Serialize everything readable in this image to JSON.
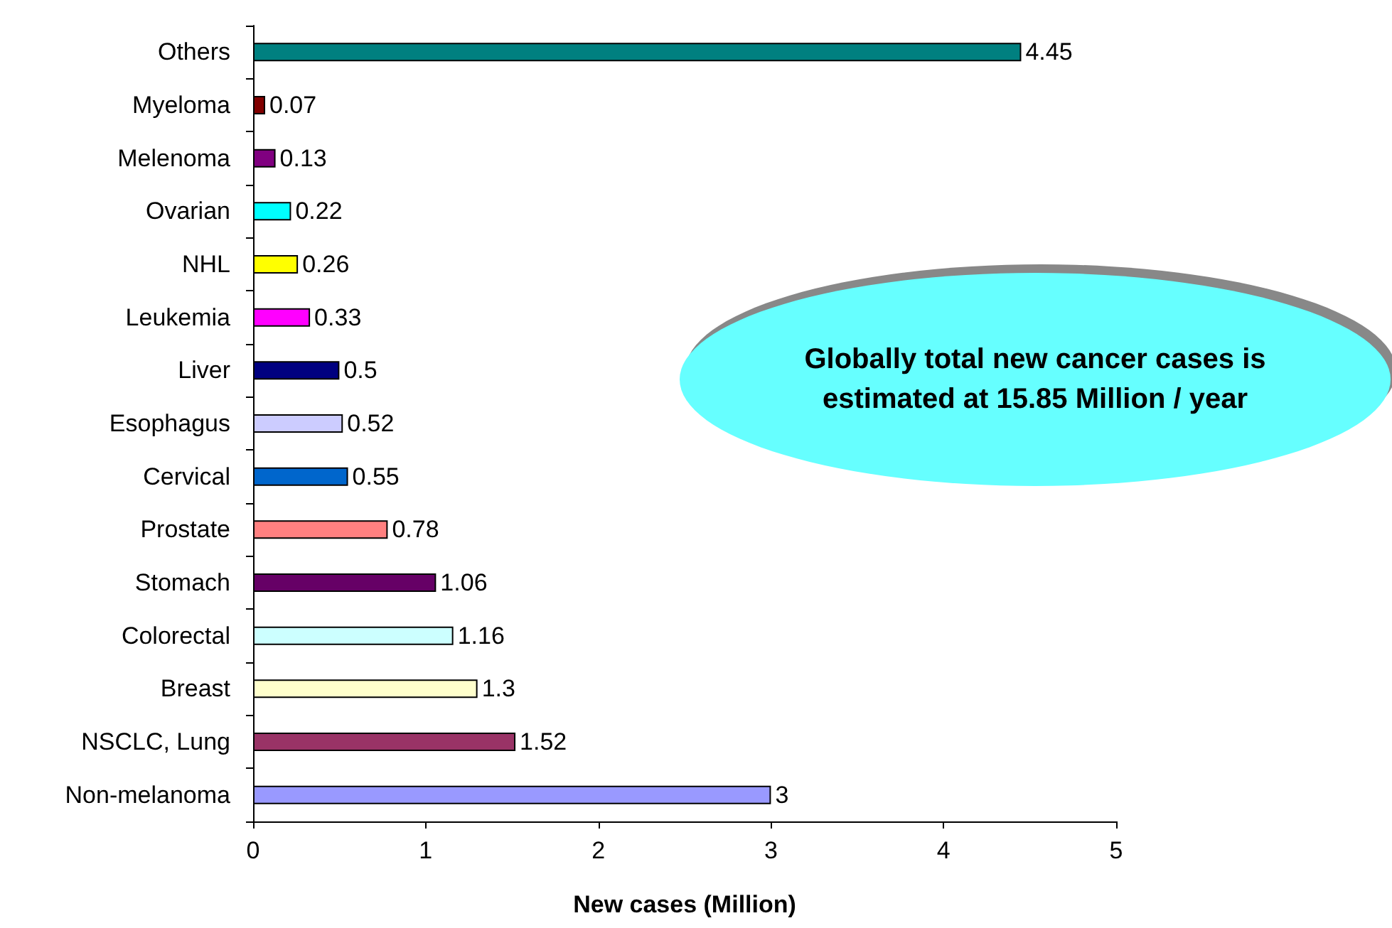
{
  "chart_data": {
    "type": "bar",
    "orientation": "horizontal",
    "xlabel": "New cases (Million)",
    "categories": [
      "Others",
      "Myeloma",
      "Melenoma",
      "Ovarian",
      "NHL",
      "Leukemia",
      "Liver",
      "Esophagus",
      "Cervical",
      "Prostate",
      "Stomach",
      "Colorectal",
      "Breast",
      "NSCLC, Lung",
      "Non-melanoma"
    ],
    "values": [
      4.45,
      0.07,
      0.13,
      0.22,
      0.26,
      0.33,
      0.5,
      0.52,
      0.55,
      0.78,
      1.06,
      1.16,
      1.3,
      1.52,
      3
    ],
    "colors": [
      "#008080",
      "#800000",
      "#800080",
      "#00ffff",
      "#ffff00",
      "#ff00ff",
      "#000080",
      "#ccccff",
      "#0066cc",
      "#ff8080",
      "#660066",
      "#ccffff",
      "#ffffcc",
      "#993366",
      "#9999ff"
    ],
    "data_labels": true,
    "xlim": [
      0,
      5
    ],
    "xticks": [
      0,
      1,
      2,
      3,
      4,
      5
    ],
    "grid": false,
    "annotations": [
      "Globally total new cancer cases is estimated at 15.85 Million / year"
    ]
  }
}
